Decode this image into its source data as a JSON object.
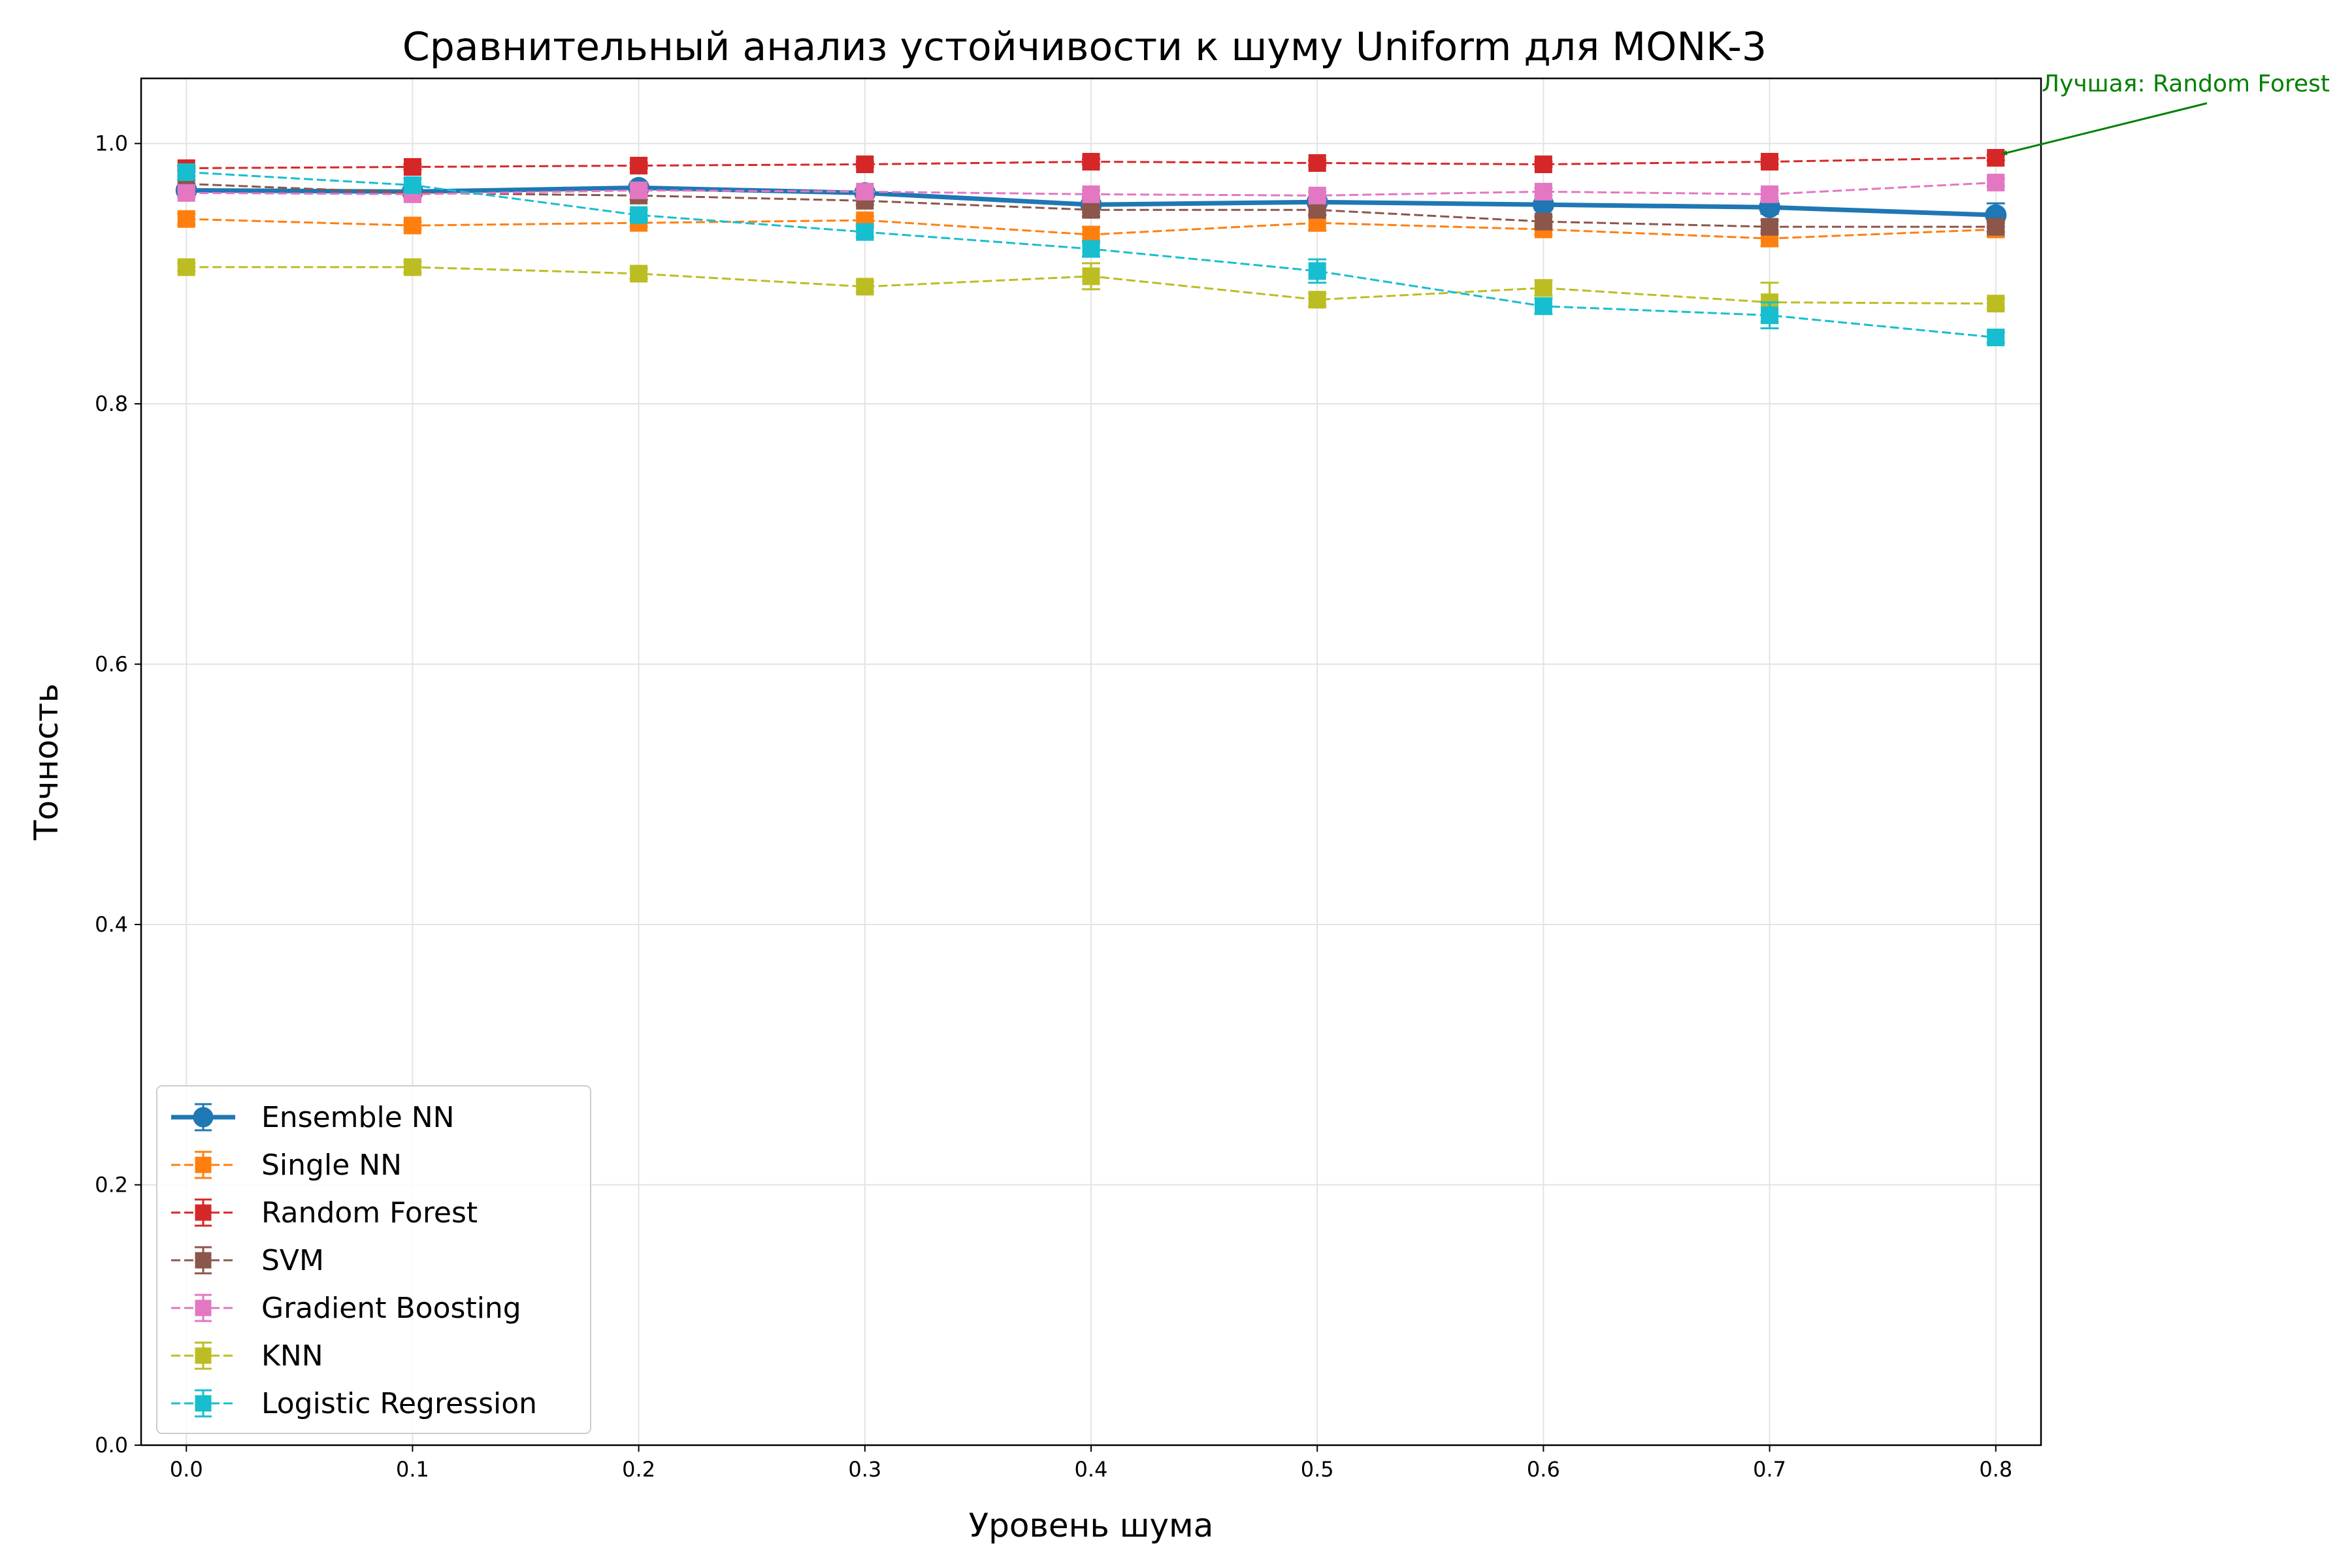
{
  "chart_data": {
    "type": "line",
    "title": "Сравнительный анализ устойчивости к шуму Uniform для MONK-3",
    "xlabel": "Уровень шума",
    "ylabel": "Точность",
    "xlim": [
      -0.02,
      0.82
    ],
    "ylim": [
      0.0,
      1.05
    ],
    "x": [
      0.0,
      0.1,
      0.2,
      0.3,
      0.4,
      0.5,
      0.6,
      0.7,
      0.8
    ],
    "x_tick_labels": [
      "0.0",
      "0.1",
      "0.2",
      "0.3",
      "0.4",
      "0.5",
      "0.6",
      "0.7",
      "0.8"
    ],
    "y_ticks": [
      0.0,
      0.2,
      0.4,
      0.6,
      0.8,
      1.0
    ],
    "y_tick_labels": [
      "0.0",
      "0.2",
      "0.4",
      "0.6",
      "0.8",
      "1.0"
    ],
    "grid": true,
    "legend_position": "lower-left",
    "series": [
      {
        "name": "Ensemble NN",
        "color": "#1f77b4",
        "marker": "circle",
        "line_style": "solid",
        "values": [
          0.964,
          0.963,
          0.966,
          0.962,
          0.953,
          0.955,
          0.953,
          0.951,
          0.945
        ],
        "errors": [
          0.003,
          0.003,
          0.004,
          0.003,
          0.006,
          0.004,
          0.004,
          0.005,
          0.009
        ]
      },
      {
        "name": "Single NN",
        "color": "#ff7f0e",
        "marker": "square",
        "line_style": "dashed",
        "values": [
          0.942,
          0.937,
          0.939,
          0.941,
          0.93,
          0.939,
          0.934,
          0.927,
          0.934
        ],
        "errors": [
          0.004,
          0.003,
          0.003,
          0.003,
          0.006,
          0.006,
          0.004,
          0.006,
          0.005
        ]
      },
      {
        "name": "Random Forest",
        "color": "#d62728",
        "marker": "square",
        "line_style": "dashed",
        "values": [
          0.981,
          0.982,
          0.983,
          0.984,
          0.986,
          0.985,
          0.984,
          0.986,
          0.989
        ],
        "errors": [
          0.002,
          0.002,
          0.002,
          0.002,
          0.002,
          0.002,
          0.002,
          0.002,
          0.002
        ]
      },
      {
        "name": "SVM",
        "color": "#8c564b",
        "marker": "square",
        "line_style": "dashed",
        "values": [
          0.969,
          0.962,
          0.96,
          0.956,
          0.949,
          0.949,
          0.94,
          0.936,
          0.936
        ],
        "errors": [
          0.003,
          0.003,
          0.003,
          0.003,
          0.005,
          0.004,
          0.004,
          0.005,
          0.004
        ]
      },
      {
        "name": "Gradient Boosting",
        "color": "#e377c2",
        "marker": "square",
        "line_style": "dashed",
        "values": [
          0.962,
          0.961,
          0.964,
          0.963,
          0.961,
          0.96,
          0.963,
          0.961,
          0.97
        ],
        "errors": [
          0.003,
          0.003,
          0.003,
          0.003,
          0.003,
          0.003,
          0.003,
          0.003,
          0.003
        ]
      },
      {
        "name": "KNN",
        "color": "#bcbd22",
        "marker": "square",
        "line_style": "dashed",
        "values": [
          0.905,
          0.905,
          0.9,
          0.89,
          0.898,
          0.88,
          0.889,
          0.878,
          0.877
        ],
        "errors": [
          0.003,
          0.004,
          0.004,
          0.004,
          0.01,
          0.005,
          0.006,
          0.015,
          0.004
        ]
      },
      {
        "name": "Logistic Regression",
        "color": "#17becf",
        "marker": "square",
        "line_style": "dashed",
        "values": [
          0.978,
          0.968,
          0.945,
          0.932,
          0.919,
          0.902,
          0.875,
          0.868,
          0.851
        ],
        "errors": [
          0.003,
          0.005,
          0.004,
          0.004,
          0.006,
          0.009,
          0.006,
          0.01,
          0.004
        ]
      }
    ],
    "annotation": {
      "text": "Лучшая: Random Forest",
      "color": "#008000",
      "points_to_series": "Random Forest",
      "points_to_x": 0.8
    }
  }
}
